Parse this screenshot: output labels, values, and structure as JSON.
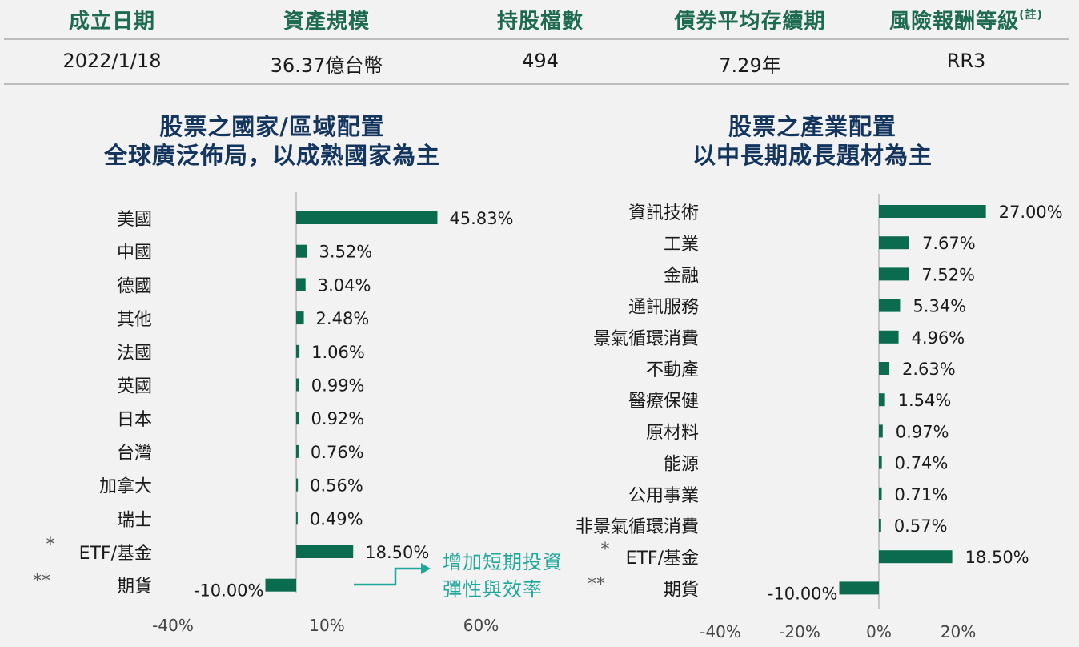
{
  "summary": {
    "headers": [
      "成立日期",
      "資產規模",
      "持股檔數",
      "債券平均存續期",
      "風險報酬等級"
    ],
    "header_note": "(註)",
    "values": [
      "2022/1/18",
      "36.37億台幣",
      "494",
      "7.29年",
      "RR3"
    ]
  },
  "annotation": {
    "line1": "增加短期投資",
    "line2": "彈性與效率"
  },
  "colors": {
    "bar": "#0a6b4e",
    "header": "#1f6b52",
    "title": "#14355e",
    "annotation": "#1fa79a"
  },
  "chart_data": [
    {
      "type": "bar",
      "orientation": "horizontal",
      "title": "股票之國家/區域配置",
      "subtitle": "全球廣泛佈局，以成熟國家為主",
      "categories": [
        "美國",
        "中國",
        "德國",
        "其他",
        "法國",
        "英國",
        "日本",
        "台灣",
        "加拿大",
        "瑞士",
        "ETF/基金",
        "期貨"
      ],
      "category_prefixes": [
        "",
        "",
        "",
        "",
        "",
        "",
        "",
        "",
        "",
        "",
        "*",
        "**"
      ],
      "values": [
        45.83,
        3.52,
        3.04,
        2.48,
        1.06,
        0.99,
        0.92,
        0.76,
        0.56,
        0.49,
        18.5,
        -10.0
      ],
      "value_labels": [
        "45.83%",
        "3.52%",
        "3.04%",
        "2.48%",
        "1.06%",
        "0.99%",
        "0.92%",
        "0.76%",
        "0.56%",
        "0.49%",
        "18.50%",
        "-10.00%"
      ],
      "xticks": [
        "-40%",
        "10%",
        "60%"
      ],
      "xtick_values": [
        -40,
        10,
        60
      ],
      "xlim": [
        -40,
        60
      ]
    },
    {
      "type": "bar",
      "orientation": "horizontal",
      "title": "股票之產業配置",
      "subtitle": "以中長期成長題材為主",
      "categories": [
        "資訊技術",
        "工業",
        "金融",
        "通訊服務",
        "景氣循環消費",
        "不動產",
        "醫療保健",
        "原材料",
        "能源",
        "公用事業",
        "非景氣循環消費",
        "ETF/基金",
        "期貨"
      ],
      "category_prefixes": [
        "",
        "",
        "",
        "",
        "",
        "",
        "",
        "",
        "",
        "",
        "",
        "*",
        "**"
      ],
      "values": [
        27.0,
        7.67,
        7.52,
        5.34,
        4.96,
        2.63,
        1.54,
        0.97,
        0.74,
        0.71,
        0.57,
        18.5,
        -10.0
      ],
      "value_labels": [
        "27.00%",
        "7.67%",
        "7.52%",
        "5.34%",
        "4.96%",
        "2.63%",
        "1.54%",
        "0.97%",
        "0.74%",
        "0.71%",
        "0.57%",
        "18.50%",
        "-10.00%"
      ],
      "xticks": [
        "-40%",
        "-20%",
        "0%",
        "20%"
      ],
      "xtick_values": [
        -40,
        -20,
        0,
        20
      ],
      "xlim": [
        -40,
        30
      ]
    }
  ]
}
